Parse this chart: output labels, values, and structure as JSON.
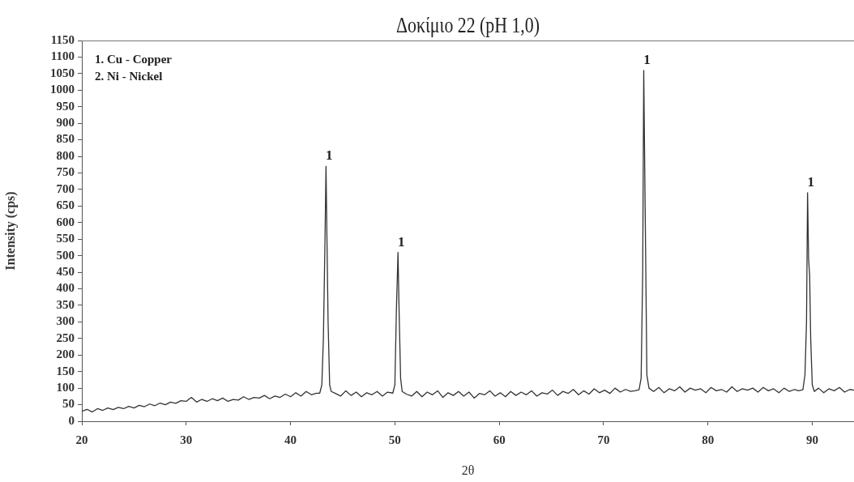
{
  "chart_data": {
    "type": "line",
    "title": "Δοκίμιο 22 (pH 1,0)",
    "xlabel": "2θ",
    "ylabel": "Intensity (cps)",
    "xlim": [
      20,
      94
    ],
    "xticks": [
      20,
      30,
      40,
      50,
      60,
      70,
      80,
      90
    ],
    "ylim": [
      0,
      1150
    ],
    "yticks": [
      0,
      50,
      100,
      150,
      200,
      250,
      300,
      350,
      400,
      450,
      500,
      550,
      600,
      650,
      700,
      750,
      800,
      850,
      900,
      950,
      1000,
      1050,
      1100,
      1150
    ],
    "grid": false,
    "legend": false,
    "marker": "none",
    "line_style": "solid",
    "annotations": [
      "1. Cu - Copper",
      "2. Ni - Nickel",
      {
        "text": "1",
        "x": 43.4,
        "y": 770
      },
      {
        "text": "1",
        "x": 50.3,
        "y": 510
      },
      {
        "text": "1",
        "x": 73.85,
        "y": 1060
      },
      {
        "text": "1",
        "x": 89.55,
        "y": 690
      }
    ],
    "series": [
      {
        "color": "#333333",
        "x": [
          20,
          20.5,
          21,
          21.5,
          22,
          22.5,
          23,
          23.5,
          24,
          24.5,
          25,
          25.5,
          26,
          26.5,
          27,
          27.5,
          28,
          28.5,
          29,
          29.5,
          30,
          30.5,
          31,
          31.5,
          32,
          32.5,
          33,
          33.5,
          34,
          34.5,
          35,
          35.5,
          36,
          36.5,
          37,
          37.5,
          38,
          38.5,
          39,
          39.5,
          40,
          40.5,
          41,
          41.5,
          42,
          42.4,
          42.8,
          43,
          43.15,
          43.3,
          43.4,
          43.5,
          43.6,
          43.75,
          43.9,
          44.3,
          44.8,
          45.3,
          45.8,
          46.3,
          46.8,
          47.3,
          47.8,
          48.3,
          48.8,
          49.3,
          49.8,
          50,
          50.15,
          50.3,
          50.4,
          50.55,
          50.7,
          51.1,
          51.6,
          52.1,
          52.6,
          53.1,
          53.6,
          54.1,
          54.6,
          55.1,
          55.6,
          56.1,
          56.6,
          57.1,
          57.6,
          58.1,
          58.6,
          59.1,
          59.6,
          60.1,
          60.6,
          61.1,
          61.6,
          62.1,
          62.6,
          63.1,
          63.6,
          64.1,
          64.6,
          65.1,
          65.6,
          66.1,
          66.6,
          67.1,
          67.6,
          68.1,
          68.6,
          69.1,
          69.6,
          70.1,
          70.6,
          71.1,
          71.6,
          72.1,
          72.6,
          73,
          73.4,
          73.6,
          73.75,
          73.85,
          73.95,
          74.05,
          74.15,
          74.35,
          74.8,
          75.3,
          75.8,
          76.3,
          76.8,
          77.3,
          77.8,
          78.3,
          78.8,
          79.3,
          79.8,
          80.3,
          80.8,
          81.3,
          81.8,
          82.3,
          82.8,
          83.3,
          83.8,
          84.3,
          84.8,
          85.3,
          85.8,
          86.3,
          86.8,
          87.3,
          87.8,
          88.3,
          88.7,
          89.1,
          89.3,
          89.45,
          89.55,
          89.65,
          89.75,
          89.85,
          90,
          90.2,
          90.6,
          91.1,
          91.6,
          92.1,
          92.6,
          93.1,
          93.6,
          94
        ],
        "values": [
          30,
          36,
          28,
          38,
          33,
          40,
          35,
          42,
          38,
          45,
          40,
          48,
          44,
          52,
          47,
          55,
          50,
          58,
          54,
          62,
          60,
          72,
          58,
          66,
          60,
          68,
          62,
          70,
          60,
          66,
          64,
          74,
          66,
          72,
          70,
          78,
          68,
          76,
          72,
          82,
          74,
          86,
          76,
          90,
          80,
          84,
          85,
          110,
          250,
          540,
          770,
          530,
          300,
          110,
          90,
          84,
          76,
          92,
          78,
          88,
          74,
          86,
          80,
          90,
          76,
          88,
          85,
          110,
          340,
          510,
          340,
          130,
          90,
          82,
          76,
          90,
          74,
          88,
          80,
          92,
          72,
          86,
          78,
          90,
          76,
          88,
          70,
          84,
          80,
          92,
          76,
          86,
          74,
          90,
          78,
          88,
          80,
          92,
          76,
          86,
          82,
          94,
          78,
          90,
          84,
          96,
          80,
          92,
          82,
          98,
          86,
          94,
          84,
          100,
          88,
          96,
          90,
          92,
          95,
          130,
          450,
          1060,
          750,
          450,
          140,
          100,
          90,
          102,
          86,
          98,
          92,
          104,
          88,
          100,
          94,
          98,
          86,
          102,
          92,
          96,
          88,
          104,
          90,
          98,
          94,
          100,
          88,
          102,
          92,
          98,
          86,
          100,
          90,
          96,
          92,
          95,
          140,
          300,
          690,
          490,
          440,
          250,
          110,
          90,
          100,
          86,
          98,
          92,
          102,
          88,
          96,
          94
        ]
      }
    ]
  }
}
